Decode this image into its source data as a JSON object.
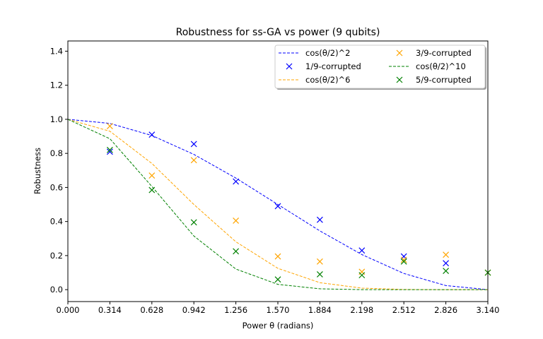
{
  "chart_data": {
    "type": "line",
    "title": "Robustness for ss-GA vs power (9 qubits)",
    "xlabel": "Power θ (radians)",
    "ylabel": "Robustness",
    "xlim": [
      0.0,
      3.14
    ],
    "ylim": [
      -0.07,
      1.46
    ],
    "xticks": [
      "0.000",
      "0.314",
      "0.628",
      "0.942",
      "1.256",
      "1.570",
      "1.884",
      "2.198",
      "2.512",
      "2.826",
      "3.140"
    ],
    "yticks": [
      "0.0",
      "0.2",
      "0.4",
      "0.6",
      "0.8",
      "1.0",
      "1.2",
      "1.4"
    ],
    "grid": false,
    "legend_position": "top-right",
    "x": [
      0.0,
      0.314,
      0.628,
      0.942,
      1.256,
      1.57,
      1.884,
      2.198,
      2.512,
      2.826,
      3.14
    ],
    "series": [
      {
        "name": "cos(θ/2)^2",
        "kind": "line",
        "style": "dashed",
        "color": "#0000ff",
        "values": [
          1.0,
          0.976,
          0.905,
          0.794,
          0.655,
          0.5,
          0.345,
          0.206,
          0.095,
          0.024,
          0.0
        ]
      },
      {
        "name": "1/9-corrupted",
        "kind": "scatter",
        "marker": "x",
        "color": "#0000ff",
        "x": [
          0.314,
          0.628,
          0.942,
          1.256,
          1.57,
          1.884,
          2.198,
          2.512,
          2.826
        ],
        "values": [
          0.81,
          0.91,
          0.855,
          0.635,
          0.49,
          0.41,
          0.23,
          0.195,
          0.155
        ]
      },
      {
        "name": "cos(θ/2)^6",
        "kind": "line",
        "style": "dashed",
        "color": "#ffa500",
        "values": [
          1.0,
          0.93,
          0.741,
          0.5,
          0.281,
          0.125,
          0.041,
          0.009,
          0.001,
          0.0,
          0.0
        ]
      },
      {
        "name": "3/9-corrupted",
        "kind": "scatter",
        "marker": "x",
        "color": "#ffa500",
        "x": [
          0.314,
          0.628,
          0.942,
          1.256,
          1.57,
          1.884,
          2.198,
          2.512,
          2.826,
          3.14
        ],
        "values": [
          0.96,
          0.67,
          0.76,
          0.405,
          0.195,
          0.165,
          0.105,
          0.175,
          0.205,
          0.1
        ]
      },
      {
        "name": "cos(θ/2)^10",
        "kind": "line",
        "style": "dashed",
        "color": "#008000",
        "values": [
          1.0,
          0.886,
          0.606,
          0.315,
          0.121,
          0.031,
          0.005,
          0.0,
          0.0,
          0.0,
          0.0
        ]
      },
      {
        "name": "5/9-corrupted",
        "kind": "scatter",
        "marker": "x",
        "color": "#008000",
        "x": [
          0.314,
          0.628,
          0.942,
          1.256,
          1.57,
          1.884,
          2.198,
          2.512,
          2.826,
          3.14
        ],
        "values": [
          0.82,
          0.585,
          0.395,
          0.225,
          0.06,
          0.09,
          0.085,
          0.165,
          0.11,
          0.1
        ]
      }
    ]
  }
}
